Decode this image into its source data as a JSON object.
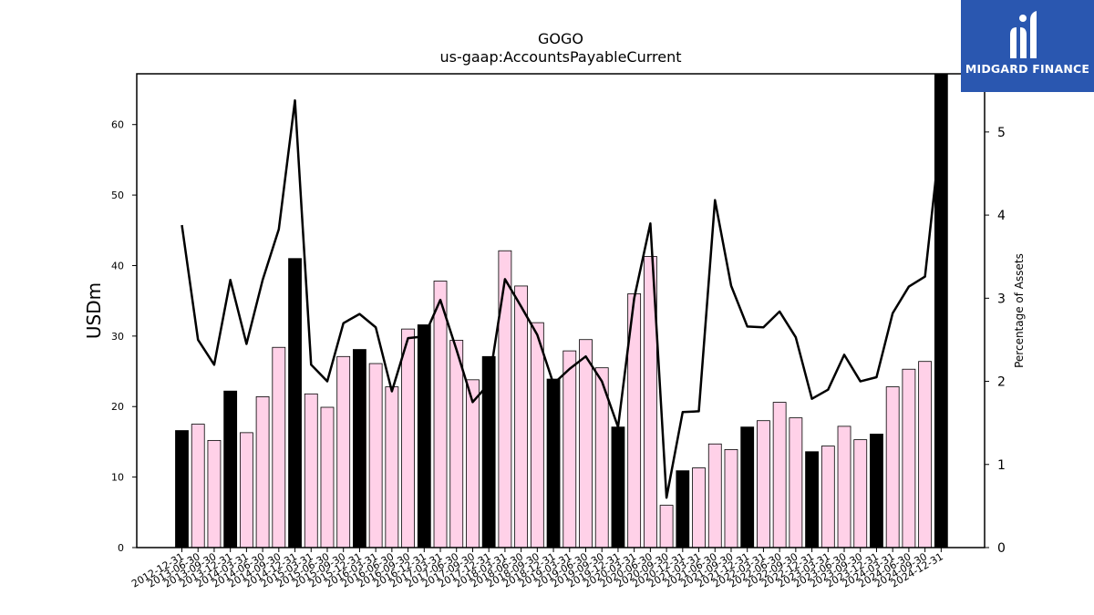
{
  "logo": {
    "text": "MIDGARD FINANCE"
  },
  "chart_data": {
    "type": "bar",
    "title": "GOGO",
    "subtitle": "us-gaap:AccountsPayableCurrent",
    "ylabel": "USDm",
    "y2label": "Percentage of Assets",
    "ylim": [
      0,
      67.2
    ],
    "y2lim": [
      0,
      5.7
    ],
    "yticks": [
      0,
      10,
      20,
      30,
      40,
      50,
      60
    ],
    "y2ticks": [
      0,
      1,
      2,
      3,
      4,
      5
    ],
    "colors": {
      "annual": "#000000",
      "quarterly": "#ffd1e8",
      "line": "#000000"
    },
    "categories": [
      "2012-12-31",
      "2013-06-30",
      "2013-09-30",
      "2013-12-31",
      "2014-03-31",
      "2014-06-30",
      "2014-09-30",
      "2014-12-31",
      "2015-03-31",
      "2015-06-30",
      "2015-09-30",
      "2015-12-31",
      "2016-03-31",
      "2016-06-30",
      "2016-09-30",
      "2016-12-31",
      "2017-03-31",
      "2017-06-30",
      "2017-09-30",
      "2017-12-31",
      "2018-03-31",
      "2018-06-30",
      "2018-09-30",
      "2018-12-31",
      "2019-03-31",
      "2019-06-30",
      "2019-09-30",
      "2019-12-31",
      "2020-03-31",
      "2020-06-30",
      "2020-09-30",
      "2020-12-31",
      "2021-03-31",
      "2021-06-30",
      "2021-09-30",
      "2021-12-31",
      "2022-03-31",
      "2022-06-30",
      "2022-09-30",
      "2022-12-31",
      "2023-03-31",
      "2023-06-30",
      "2023-09-30",
      "2023-12-31",
      "2024-03-31",
      "2024-06-30",
      "2024-09-30",
      "2024-12-31"
    ],
    "series": [
      {
        "values": [
          16.6,
          17.5,
          15.2,
          22.2,
          16.3,
          21.4,
          28.4,
          41.0,
          21.8,
          19.9,
          27.1,
          28.1,
          26.1,
          22.8,
          31.0,
          31.6,
          37.8,
          29.4,
          23.8,
          27.1,
          42.1,
          37.1,
          31.9,
          23.9,
          27.9,
          29.5,
          25.5,
          17.1,
          36.0,
          41.3,
          6.0,
          10.9,
          11.3,
          14.7,
          13.9,
          17.1,
          18.0,
          20.6,
          18.4,
          13.6,
          14.4,
          17.2,
          15.3,
          16.1,
          22.8,
          25.3,
          26.4,
          67.2
        ]
      },
      {
        "values": [
          3.88,
          2.5,
          2.2,
          3.22,
          2.45,
          3.22,
          3.83,
          5.38,
          2.2,
          2.0,
          2.7,
          2.81,
          2.65,
          1.88,
          2.52,
          2.54,
          2.98,
          2.38,
          1.75,
          1.97,
          3.23,
          2.9,
          2.56,
          1.97,
          2.15,
          2.3,
          2.0,
          1.45,
          3.0,
          3.9,
          0.6,
          1.63,
          1.64,
          4.18,
          3.15,
          2.66,
          2.65,
          2.84,
          2.53,
          1.79,
          1.9,
          2.32,
          2.0,
          2.05,
          2.82,
          3.14,
          3.26,
          5.03
        ]
      }
    ],
    "annual_flags": [
      1,
      0,
      0,
      1,
      0,
      0,
      0,
      1,
      0,
      0,
      0,
      1,
      0,
      0,
      0,
      1,
      0,
      0,
      0,
      1,
      0,
      0,
      0,
      1,
      0,
      0,
      0,
      1,
      0,
      0,
      0,
      1,
      0,
      0,
      0,
      1,
      0,
      0,
      0,
      1,
      0,
      0,
      0,
      1,
      0,
      0,
      0,
      1
    ]
  }
}
